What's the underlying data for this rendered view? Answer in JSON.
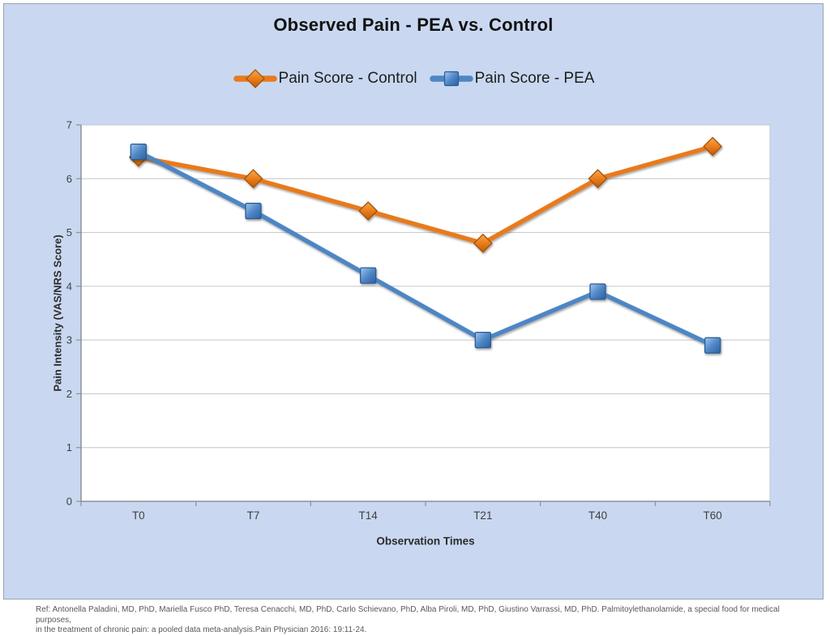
{
  "chart_data": {
    "type": "line",
    "title": "Observed Pain - PEA vs. Control",
    "xlabel": "Observation Times",
    "ylabel": "Pain Intensity (VAS/NRS Score)",
    "categories": [
      "T0",
      "T7",
      "T14",
      "T21",
      "T40",
      "T60"
    ],
    "series": [
      {
        "name": "Pain Score - Control",
        "values": [
          6.4,
          6.0,
          5.4,
          4.8,
          6.0,
          6.6
        ],
        "marker": "diamond",
        "line_color": "#e87a1e",
        "marker_stroke": "#a35107",
        "gradient": [
          "#f7a94e",
          "#ea7d1b",
          "#bc5d08"
        ]
      },
      {
        "name": "Pain Score - PEA",
        "values": [
          6.5,
          5.4,
          4.2,
          3.0,
          3.9,
          2.9
        ],
        "marker": "square",
        "line_color": "#4e86c4",
        "marker_stroke": "#2c5b94",
        "gradient": [
          "#a3c6ef",
          "#5088c8",
          "#2e5f9d"
        ]
      }
    ],
    "ylim": [
      0,
      7
    ],
    "yticks": [
      0,
      1,
      2,
      3,
      4,
      5,
      6,
      7
    ],
    "grid": true,
    "legend_position": "top",
    "background": "#c9d8f0",
    "plot_background": "#ffffff",
    "grid_color": "#c2c6cc",
    "axis_color": "#8b9199",
    "tick_label_color": "#3f3f3f"
  },
  "footer": {
    "ref_line1": "Ref: Antonella Paladini, MD, PhD, Mariella Fusco PhD, Teresa Cenacchi, MD, PhD, Carlo Schievano, PhD, Alba Piroli, MD, PhD, Giustino Varrassi, MD, PhD. Palmitoylethanolamide, a special food for medical purposes,",
    "ref_line2": "in the treatment of chronic pain: a pooled data meta-analysis.Pain Physician 2016: 19:11-24."
  }
}
